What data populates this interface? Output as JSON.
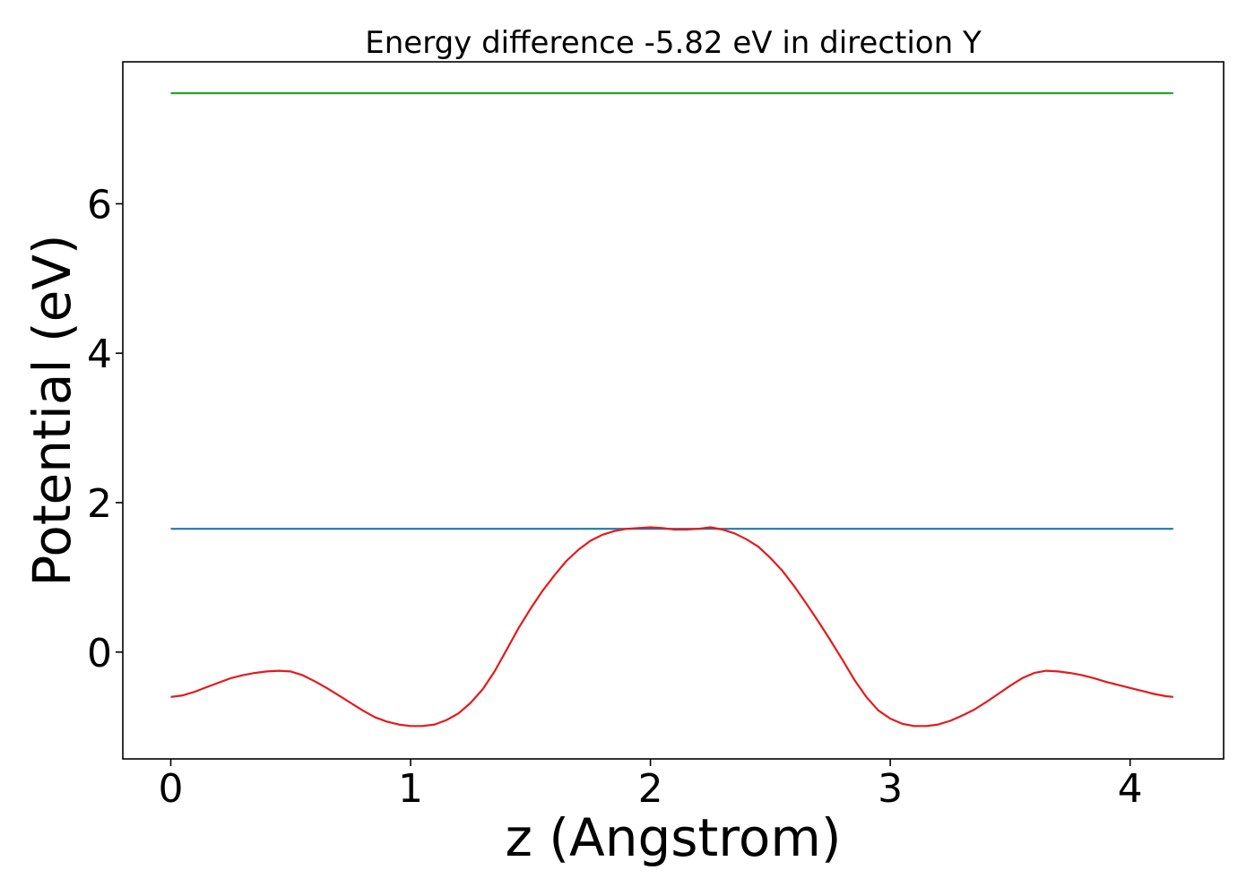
{
  "chart_data": {
    "type": "line",
    "title": "Energy difference -5.82 eV in direction Y",
    "xlabel": "z (Angstrom)",
    "ylabel": "Potential (eV)",
    "xlim": [
      -0.2,
      4.39
    ],
    "ylim": [
      -1.43,
      7.9
    ],
    "xticks": [
      0,
      1,
      2,
      3,
      4
    ],
    "yticks": [
      0,
      2,
      4,
      6
    ],
    "grid": false,
    "legend": "none",
    "series": [
      {
        "color": "#2ca02c",
        "x": [
          0,
          4.18
        ],
        "y": [
          7.48,
          7.48
        ]
      },
      {
        "color": "#1f77b4",
        "x": [
          0,
          4.18
        ],
        "y": [
          1.65,
          1.65
        ]
      },
      {
        "color": "#e41a1c",
        "x": [
          0,
          0.05,
          0.1,
          0.15,
          0.2,
          0.25,
          0.3,
          0.35,
          0.4,
          0.45,
          0.5,
          0.55,
          0.6,
          0.65,
          0.7,
          0.75,
          0.8,
          0.85,
          0.9,
          0.95,
          1.0,
          1.05,
          1.1,
          1.15,
          1.2,
          1.25,
          1.3,
          1.35,
          1.4,
          1.45,
          1.5,
          1.55,
          1.6,
          1.65,
          1.7,
          1.75,
          1.8,
          1.85,
          1.9,
          1.95,
          2.0,
          2.05,
          2.1,
          2.15,
          2.2,
          2.25,
          2.3,
          2.35,
          2.4,
          2.45,
          2.5,
          2.55,
          2.6,
          2.65,
          2.7,
          2.75,
          2.8,
          2.85,
          2.9,
          2.95,
          3.0,
          3.05,
          3.1,
          3.15,
          3.2,
          3.25,
          3.3,
          3.35,
          3.4,
          3.45,
          3.5,
          3.55,
          3.6,
          3.65,
          3.7,
          3.75,
          3.8,
          3.85,
          3.9,
          3.95,
          4.0,
          4.05,
          4.1,
          4.15,
          4.18
        ],
        "y": [
          -0.6,
          -0.58,
          -0.53,
          -0.47,
          -0.41,
          -0.35,
          -0.31,
          -0.28,
          -0.26,
          -0.25,
          -0.26,
          -0.31,
          -0.39,
          -0.48,
          -0.58,
          -0.68,
          -0.78,
          -0.87,
          -0.93,
          -0.97,
          -0.99,
          -0.99,
          -0.97,
          -0.91,
          -0.82,
          -0.68,
          -0.5,
          -0.26,
          0.03,
          0.32,
          0.58,
          0.82,
          1.03,
          1.22,
          1.37,
          1.49,
          1.57,
          1.62,
          1.65,
          1.66,
          1.67,
          1.66,
          1.64,
          1.64,
          1.65,
          1.67,
          1.64,
          1.59,
          1.51,
          1.41,
          1.26,
          1.09,
          0.88,
          0.65,
          0.41,
          0.16,
          -0.1,
          -0.37,
          -0.6,
          -0.78,
          -0.89,
          -0.96,
          -0.99,
          -0.99,
          -0.97,
          -0.92,
          -0.85,
          -0.77,
          -0.67,
          -0.56,
          -0.45,
          -0.35,
          -0.28,
          -0.25,
          -0.26,
          -0.28,
          -0.31,
          -0.35,
          -0.4,
          -0.44,
          -0.48,
          -0.52,
          -0.56,
          -0.59,
          -0.6
        ]
      }
    ]
  }
}
